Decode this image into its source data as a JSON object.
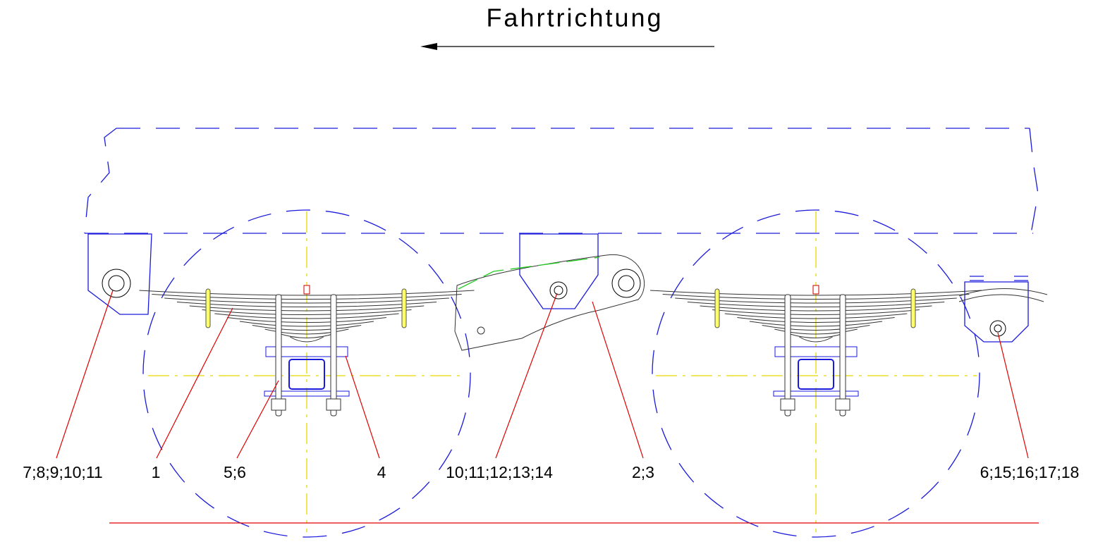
{
  "title": "Fahrtrichtung",
  "callouts": [
    {
      "label": "7;8;9;10;11"
    },
    {
      "label": "1"
    },
    {
      "label": "5;6"
    },
    {
      "label": "4"
    },
    {
      "label": "10;11;12;13;14"
    },
    {
      "label": "2;3"
    },
    {
      "label": "6;15;16;17;18"
    }
  ]
}
